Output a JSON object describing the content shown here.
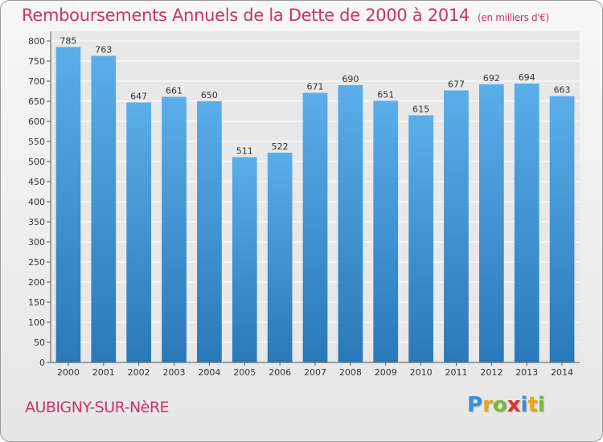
{
  "chart_data": {
    "type": "bar",
    "title": "Remboursements Annuels de la Dette de 2000 à 2014",
    "subtitle": "(en milliers d'€)",
    "categories": [
      "2000",
      "2001",
      "2002",
      "2003",
      "2004",
      "2005",
      "2006",
      "2007",
      "2008",
      "2009",
      "2010",
      "2011",
      "2012",
      "2013",
      "2014"
    ],
    "values": [
      785,
      763,
      647,
      661,
      650,
      511,
      522,
      671,
      690,
      651,
      615,
      677,
      692,
      694,
      663
    ],
    "ylim": [
      0,
      800
    ],
    "ytick_step": 50,
    "xlabel": "",
    "ylabel": "",
    "grid": true,
    "colors": {
      "bar_top": "#5aaeea",
      "bar_bottom": "#2a78b8",
      "title": "#c8336e",
      "plot_bg": "#e8e8e8"
    }
  },
  "footer": {
    "city": "AUBIGNY-SUR-NèRE",
    "logo_letters": [
      {
        "ch": "P",
        "color": "#3a8fd6"
      },
      {
        "ch": "r",
        "color": "#e8a81a"
      },
      {
        "ch": "o",
        "color": "#7bb83a"
      },
      {
        "ch": "x",
        "color": "#d9342b"
      },
      {
        "ch": "i",
        "color": "#3a8fd6"
      },
      {
        "ch": "t",
        "color": "#e8a81a"
      },
      {
        "ch": "i",
        "color": "#7bb83a"
      }
    ]
  }
}
